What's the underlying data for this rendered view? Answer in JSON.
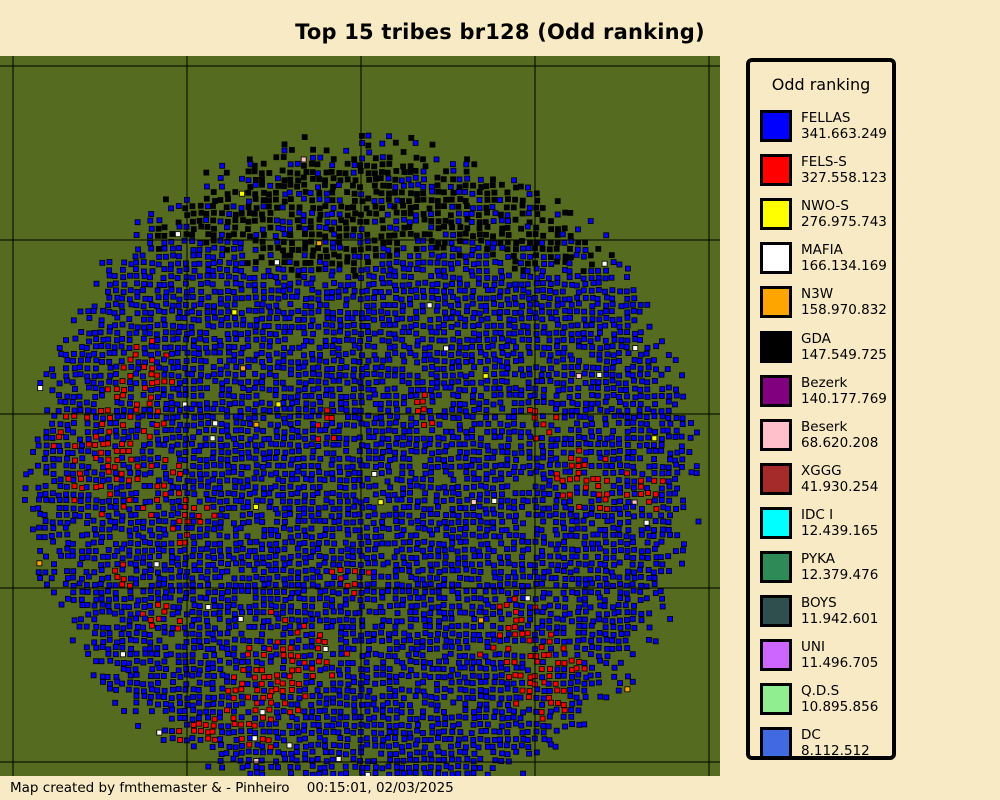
{
  "title": "Top 15 tribes br128 (Odd ranking)",
  "legend": {
    "title": "Odd ranking",
    "items": [
      {
        "name": "FELLAS",
        "value": "341.663.249",
        "color": "#0000ff"
      },
      {
        "name": "FELS-S",
        "value": "327.558.123",
        "color": "#ff0000"
      },
      {
        "name": "NWO-S",
        "value": "276.975.743",
        "color": "#ffff00"
      },
      {
        "name": "MAFIA",
        "value": "166.134.169",
        "color": "#ffffff"
      },
      {
        "name": "N3W",
        "value": "158.970.832",
        "color": "#ffa500"
      },
      {
        "name": "GDA",
        "value": "147.549.725",
        "color": "#000000"
      },
      {
        "name": "Bezerk",
        "value": "140.177.769",
        "color": "#800080"
      },
      {
        "name": "Beserk",
        "value": "68.620.208",
        "color": "#ffc0cb"
      },
      {
        "name": "XGGG",
        "value": "41.930.254",
        "color": "#a52a2a"
      },
      {
        "name": "IDC I",
        "value": "12.439.165",
        "color": "#00ffff"
      },
      {
        "name": "PYKA",
        "value": "12.379.476",
        "color": "#2e8b57"
      },
      {
        "name": "BOYS",
        "value": "11.942.601",
        "color": "#2f4f4f"
      },
      {
        "name": "UNI",
        "value": "11.496.705",
        "color": "#cc66ff"
      },
      {
        "name": "Q.D.S",
        "value": "10.895.856",
        "color": "#90ee90"
      },
      {
        "name": "DC",
        "value": "8.112.512",
        "color": "#4169e1"
      }
    ]
  },
  "map": {
    "background_color": "#556b1f",
    "gridline_color": "#000000"
  },
  "footer": {
    "credit": "Map created by fmthemaster & - Pinheiro",
    "timestamp": "00:15:01, 02/03/2025"
  }
}
